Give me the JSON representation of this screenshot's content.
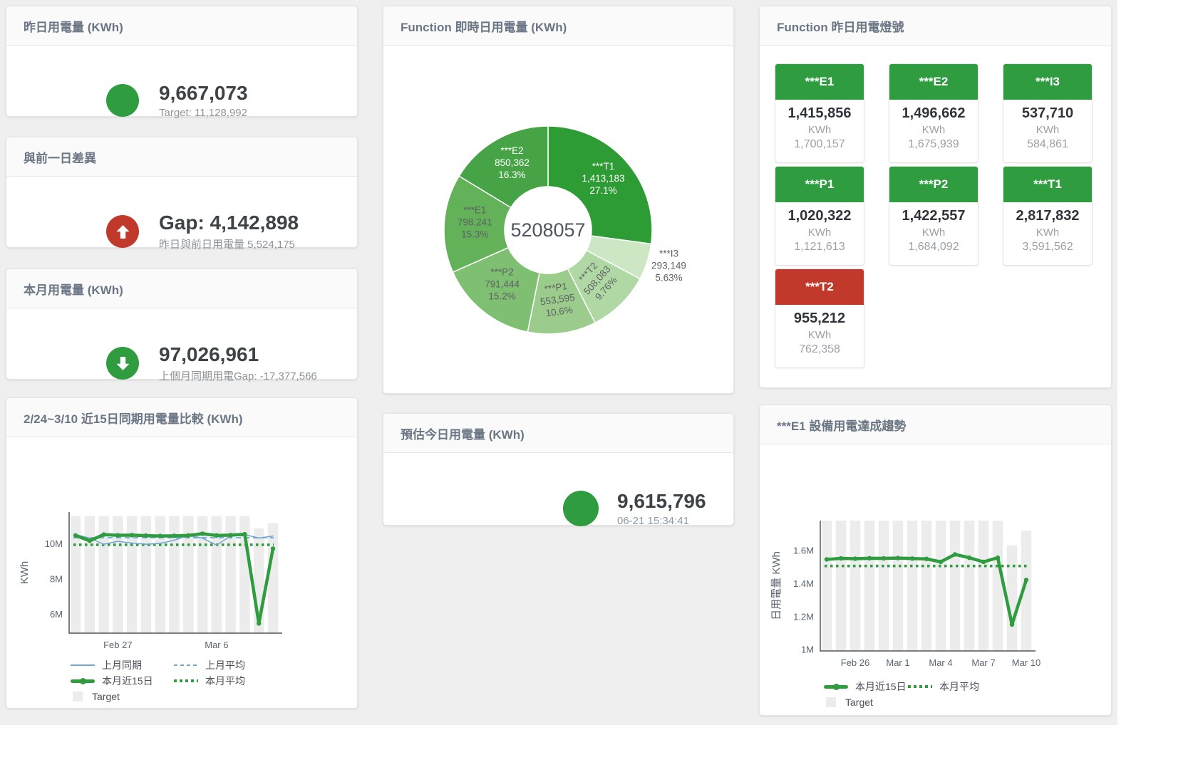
{
  "colors": {
    "accent_green": "#2e9c3f",
    "alert_red": "#c0392b",
    "target_bar": "#ececec",
    "blue_line": "#72a7d3",
    "status": {
      "green": "#2e9c3f",
      "red": "#c0392b"
    }
  },
  "panels": {
    "yesterday": {
      "title": "昨日用電量 (KWh)",
      "value": "9,667,073",
      "subtitle": "Target: 11,128,992"
    },
    "gap": {
      "title": "與前一日差異",
      "value": "Gap: 4,142,898",
      "subtitle": "昨日與前日用電量 5,524,175"
    },
    "month": {
      "title": "本月用電量 (KWh)",
      "value": "97,026,961",
      "subtitle": "上個月同期用電Gap: -17,377,566"
    },
    "compare": {
      "title": "2/24~3/10 近15日同期用電量比較 (KWh)"
    },
    "donut": {
      "title": "Function 即時日用電量 (KWh)"
    },
    "estimate": {
      "title": "預估今日用電量 (KWh)",
      "value": "9,615,796",
      "subtitle": "06-21 15:34:41"
    },
    "lights": {
      "title": "Function 昨日用電燈號",
      "tiles": [
        {
          "label": "***E1",
          "value": "1,415,856",
          "unit": "KWh",
          "target": "1,700,157",
          "status": "green"
        },
        {
          "label": "***E2",
          "value": "1,496,662",
          "unit": "KWh",
          "target": "1,675,939",
          "status": "green"
        },
        {
          "label": "***I3",
          "value": "537,710",
          "unit": "KWh",
          "target": "584,861",
          "status": "green"
        },
        {
          "label": "***P1",
          "value": "1,020,322",
          "unit": "KWh",
          "target": "1,121,613",
          "status": "green"
        },
        {
          "label": "***P2",
          "value": "1,422,557",
          "unit": "KWh",
          "target": "1,684,092",
          "status": "green"
        },
        {
          "label": "***T1",
          "value": "2,817,832",
          "unit": "KWh",
          "target": "3,591,562",
          "status": "green"
        },
        {
          "label": "***T2",
          "value": "955,212",
          "unit": "KWh",
          "target": "762,358",
          "status": "red"
        }
      ]
    },
    "e1trend": {
      "title": "***E1 設備用電達成趨勢"
    }
  },
  "chart_data": [
    {
      "id": "donut",
      "type": "pie",
      "title": "Function 即時日用電量 (KWh)",
      "center_label": "5208057",
      "slices": [
        {
          "name": "***T1",
          "value": "1,413,183",
          "pct": "27.1%",
          "share": 27.1,
          "color": "#2e9c34",
          "label_color": "#ffffff",
          "rotate": 0
        },
        {
          "name": "***I3",
          "value": "293,149",
          "pct": "5.63%",
          "share": 5.63,
          "color": "#cde7c4",
          "label_color": "#5e6064",
          "rotate": 0,
          "outside": true
        },
        {
          "name": "***T2",
          "value": "508,083",
          "pct": "9.76%",
          "share": 9.76,
          "color": "#b0d8a4",
          "label_color": "#5e6064",
          "rotate": -48
        },
        {
          "name": "***P1",
          "value": "553,595",
          "pct": "10.6%",
          "share": 10.6,
          "color": "#9bcc8c",
          "label_color": "#5e6064",
          "rotate": -8
        },
        {
          "name": "***P2",
          "value": "791,444",
          "pct": "15.2%",
          "share": 15.2,
          "color": "#7fbf72",
          "label_color": "#5e6064",
          "rotate": 0
        },
        {
          "name": "***E1",
          "value": "798,241",
          "pct": "15.3%",
          "share": 15.3,
          "color": "#63b158",
          "label_color": "#5e6064",
          "rotate": 0
        },
        {
          "name": "***E2",
          "value": "850,362",
          "pct": "16.3%",
          "share": 16.3,
          "color": "#47a446",
          "label_color": "#ffffff",
          "rotate": 0
        }
      ]
    },
    {
      "id": "compare15",
      "type": "line",
      "title": "2/24~3/10 近15日同期用電量比較 (KWh)",
      "ylabel": "KWh",
      "units": "millions KWh",
      "n_points": 15,
      "ylim": [
        4.9,
        11.78
      ],
      "y_ticks": [
        {
          "label": "6M",
          "value": 6
        },
        {
          "label": "8M",
          "value": 8
        },
        {
          "label": "10M",
          "value": 10
        }
      ],
      "x_ticks": [
        {
          "label": "Feb 27",
          "index": 3
        },
        {
          "label": "Mar 6",
          "index": 10
        }
      ],
      "target_bars": [
        11.55,
        11.55,
        11.55,
        11.55,
        11.55,
        11.55,
        11.55,
        11.55,
        11.55,
        11.55,
        11.55,
        11.55,
        11.55,
        10.85,
        11.15
      ],
      "series": [
        {
          "name": "上月同期",
          "color": "#72a7d3",
          "width": 1.6,
          "markers": false,
          "values": [
            10.5,
            10.3,
            9.95,
            10.12,
            10.02,
            9.95,
            10.0,
            10.18,
            10.45,
            10.3,
            9.9,
            10.42,
            10.5,
            10.3,
            10.42
          ]
        },
        {
          "name": "本月近15日",
          "color": "#2e9c3f",
          "width": 4.5,
          "markers": true,
          "values": [
            10.45,
            10.15,
            10.5,
            10.46,
            10.47,
            10.44,
            10.42,
            10.43,
            10.45,
            10.55,
            10.45,
            10.47,
            10.52,
            5.45,
            9.7
          ]
        }
      ],
      "avg_lines": [
        {
          "name": "上月平均",
          "value": 10.32,
          "color": "#72a7d3",
          "style": "dash"
        },
        {
          "name": "本月平均",
          "value": 9.92,
          "color": "#2e9c3f",
          "style": "dot"
        }
      ],
      "legend": [
        [
          {
            "swatch": "sw-line",
            "label": "上月同期"
          },
          {
            "swatch": "sw-dash",
            "label": "上月平均"
          }
        ],
        [
          {
            "swatch": "sw-thick",
            "label": "本月近15日"
          },
          {
            "swatch": "sw-dot",
            "label": "本月平均"
          }
        ],
        [
          {
            "swatch": "sw-square",
            "label": "Target"
          }
        ]
      ]
    },
    {
      "id": "e1trend",
      "type": "line",
      "title": "***E1 設備用電達成趨勢",
      "ylabel": "日用電量 KWh",
      "units": "millions KWh",
      "n_points": 15,
      "ylim": [
        0.99,
        1.78
      ],
      "y_ticks": [
        {
          "label": "1M",
          "value": 1
        },
        {
          "label": "1.2M",
          "value": 1.2
        },
        {
          "label": "1.4M",
          "value": 1.4
        },
        {
          "label": "1.6M",
          "value": 1.6
        }
      ],
      "x_ticks": [
        {
          "label": "Feb 26",
          "index": 2
        },
        {
          "label": "Mar 1",
          "index": 5
        },
        {
          "label": "Mar 4",
          "index": 8
        },
        {
          "label": "Mar 7",
          "index": 11
        },
        {
          "label": "Mar 10",
          "index": 14
        }
      ],
      "target_bars": [
        1.78,
        1.78,
        1.78,
        1.78,
        1.78,
        1.78,
        1.78,
        1.78,
        1.78,
        1.78,
        1.78,
        1.78,
        1.78,
        1.63,
        1.72
      ],
      "series": [
        {
          "name": "本月近15日",
          "color": "#2e9c3f",
          "width": 4.5,
          "markers": true,
          "values": [
            1.545,
            1.551,
            1.549,
            1.552,
            1.551,
            1.553,
            1.55,
            1.548,
            1.53,
            1.575,
            1.555,
            1.53,
            1.555,
            1.15,
            1.42
          ]
        }
      ],
      "avg_lines": [
        {
          "name": "本月平均",
          "value": 1.505,
          "color": "#2e9c3f",
          "style": "dot"
        }
      ],
      "legend": [
        [
          {
            "swatch": "sw-thick",
            "label": "本月近15日"
          },
          {
            "swatch": "sw-dot",
            "label": "本月平均"
          }
        ],
        [
          {
            "swatch": "sw-square",
            "label": "Target"
          }
        ]
      ]
    }
  ]
}
